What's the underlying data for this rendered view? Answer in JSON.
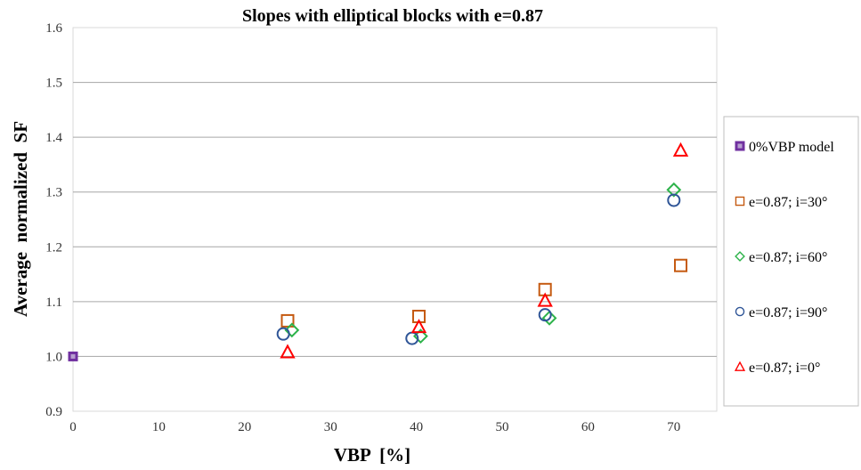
{
  "chart_data": {
    "type": "scatter",
    "title": "Slopes with elliptical blocks with e=0.87",
    "xlabel": "VBP  [%]",
    "ylabel": "Average  normalized  SF",
    "xlim": [
      0,
      75
    ],
    "ylim": [
      0.9,
      1.6
    ],
    "xticks": [
      0,
      10,
      20,
      30,
      40,
      50,
      60,
      70
    ],
    "yticks": [
      0.9,
      1.0,
      1.1,
      1.2,
      1.3,
      1.4,
      1.5,
      1.6
    ],
    "ytick_labels": [
      "0.9",
      "1.0",
      "1.1",
      "1.2",
      "1.3",
      "1.4",
      "1.5",
      "1.6"
    ],
    "grid": "horizontal",
    "legend_position": "right",
    "series": [
      {
        "name": "0%VBP model",
        "marker": "filled-square",
        "color": "#7030A0",
        "points": [
          [
            0,
            1.0
          ]
        ]
      },
      {
        "name": "e=0.87; i=30°",
        "marker": "square",
        "color": "#C55A11",
        "points": [
          [
            25,
            1.065
          ],
          [
            40.3,
            1.073
          ],
          [
            55,
            1.122
          ],
          [
            70.8,
            1.166
          ]
        ]
      },
      {
        "name": "e=0.87; i=60°",
        "marker": "diamond",
        "color": "#2DB34A",
        "points": [
          [
            25.5,
            1.048
          ],
          [
            40.5,
            1.037
          ],
          [
            55.5,
            1.07
          ],
          [
            70,
            1.304
          ]
        ]
      },
      {
        "name": "e=0.87; i=90°",
        "marker": "circle",
        "color": "#2F5597",
        "points": [
          [
            24.5,
            1.041
          ],
          [
            39.5,
            1.033
          ],
          [
            55,
            1.076
          ],
          [
            70,
            1.285
          ]
        ]
      },
      {
        "name": "e=0.87; i=0°",
        "marker": "triangle",
        "color": "#FF0000",
        "points": [
          [
            25,
            1.008
          ],
          [
            40.3,
            1.054
          ],
          [
            55,
            1.102
          ],
          [
            70.8,
            1.376
          ]
        ]
      }
    ]
  }
}
